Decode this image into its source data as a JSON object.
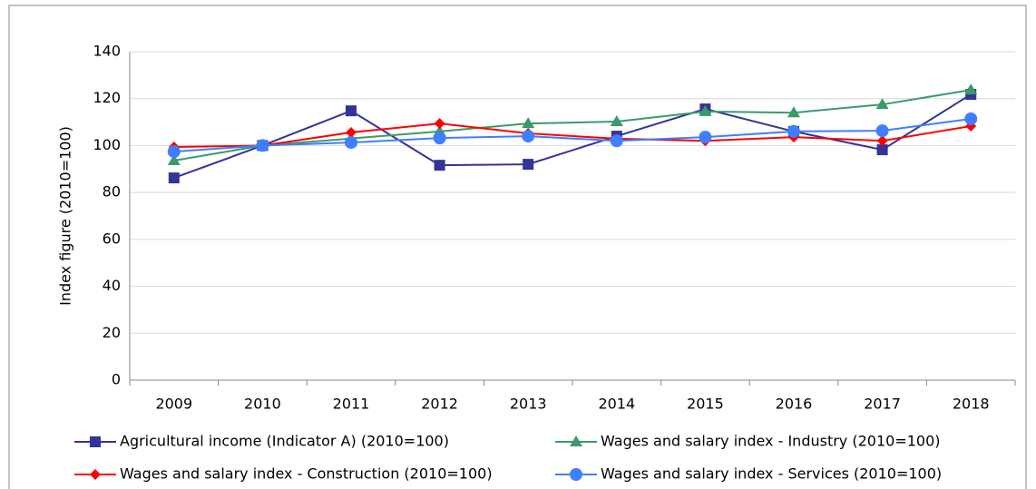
{
  "chart_data": {
    "type": "line",
    "ylabel": "Index figure (2010=100)",
    "categories": [
      "2009",
      "2010",
      "2011",
      "2012",
      "2013",
      "2014",
      "2015",
      "2016",
      "2017",
      "2018"
    ],
    "series": [
      {
        "name": "Agricultural income (Indicator A) (2010=100)",
        "color": "#333399",
        "marker": "square",
        "values": [
          86.2,
          100,
          114.8,
          91.6,
          92,
          104,
          115.6,
          106,
          98.2,
          121.8
        ]
      },
      {
        "name": "Wages and salary index - Industry (2010=100)",
        "color": "#3a9a6a",
        "marker": "triangle",
        "values": [
          93.6,
          100,
          103,
          106,
          109.4,
          110.2,
          114.5,
          114,
          117.5,
          123.7
        ]
      },
      {
        "name": "Wages and salary index - Construction (2010=100)",
        "color": "#ff0000",
        "marker": "diamond",
        "values": [
          99.4,
          100,
          105.6,
          109.4,
          105.2,
          102.9,
          102,
          103.6,
          102,
          108.3
        ]
      },
      {
        "name": "Wages and salary index - Services (2010=100)",
        "color": "#3f7fff",
        "marker": "circle",
        "values": [
          97.4,
          100,
          101.3,
          103.2,
          104,
          102,
          103.6,
          106,
          106.3,
          111.4
        ]
      }
    ],
    "ylim": [
      0,
      140
    ],
    "yticks": [
      0,
      20,
      40,
      60,
      80,
      100,
      120,
      140
    ],
    "grid": true
  }
}
